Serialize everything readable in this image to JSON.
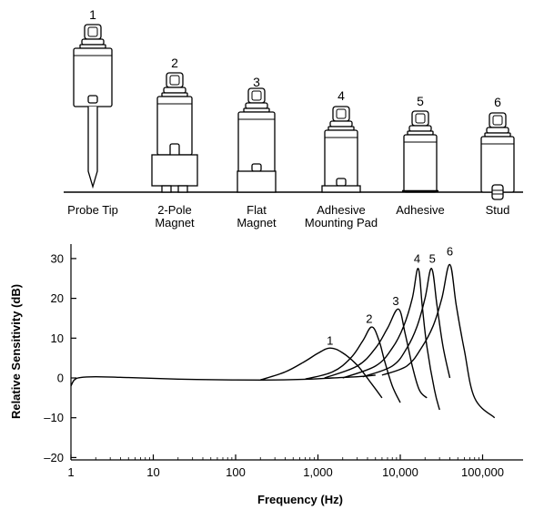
{
  "mounts": [
    {
      "number": "1",
      "label_lines": [
        "Probe Tip"
      ]
    },
    {
      "number": "2",
      "label_lines": [
        "2-Pole",
        "Magnet"
      ]
    },
    {
      "number": "3",
      "label_lines": [
        "Flat",
        "Magnet"
      ]
    },
    {
      "number": "4",
      "label_lines": [
        "Adhesive",
        "Mounting Pad"
      ]
    },
    {
      "number": "5",
      "label_lines": [
        "Adhesive"
      ]
    },
    {
      "number": "6",
      "label_lines": [
        "Stud"
      ]
    }
  ],
  "chart_data": {
    "type": "line",
    "title": "",
    "xlabel": "Frequency (Hz)",
    "ylabel": "Relative Sensitivity (dB)",
    "x_scale": "log",
    "xlim": [
      1,
      150000
    ],
    "ylim": [
      -20,
      33
    ],
    "x_ticks": [
      {
        "value": 1,
        "label": "1"
      },
      {
        "value": 10,
        "label": "10"
      },
      {
        "value": 100,
        "label": "100"
      },
      {
        "value": 1000,
        "label": "1,000"
      },
      {
        "value": 10000,
        "label": "10,000"
      },
      {
        "value": 100000,
        "label": "100,000"
      }
    ],
    "y_ticks": [
      {
        "value": 30,
        "label": "30"
      },
      {
        "value": 20,
        "label": "20"
      },
      {
        "value": 10,
        "label": "10"
      },
      {
        "value": 0,
        "label": "0"
      },
      {
        "value": -10,
        "label": "–10"
      },
      {
        "value": -20,
        "label": "–20"
      }
    ],
    "grid": false,
    "baseline": [
      [
        1,
        -2
      ],
      [
        1.1,
        -0.5
      ],
      [
        1.3,
        0.1
      ],
      [
        2,
        0.3
      ],
      [
        5,
        0.1
      ],
      [
        20,
        -0.3
      ],
      [
        100,
        -0.5
      ],
      [
        300,
        -0.5
      ],
      [
        800,
        -0.3
      ],
      [
        1500,
        0
      ],
      [
        3000,
        0.3
      ],
      [
        5000,
        0.7
      ]
    ],
    "series": [
      {
        "name": "1",
        "label_at": [
          1400,
          8.3
        ],
        "points": [
          [
            200,
            -0.5
          ],
          [
            400,
            1.5
          ],
          [
            700,
            4.2
          ],
          [
            1000,
            6.2
          ],
          [
            1400,
            7.5
          ],
          [
            2000,
            6.3
          ],
          [
            3000,
            3.2
          ],
          [
            4500,
            -1.5
          ],
          [
            6000,
            -5
          ]
        ]
      },
      {
        "name": "2",
        "label_at": [
          4200,
          13.8
        ],
        "points": [
          [
            700,
            -0.3
          ],
          [
            1500,
            1.5
          ],
          [
            2500,
            5
          ],
          [
            3500,
            9.3
          ],
          [
            4500,
            12.8
          ],
          [
            5500,
            9.5
          ],
          [
            6500,
            4
          ],
          [
            8000,
            -2
          ],
          [
            10000,
            -6.2
          ]
        ]
      },
      {
        "name": "3",
        "label_at": [
          8800,
          18.3
        ],
        "points": [
          [
            1200,
            0
          ],
          [
            3000,
            3
          ],
          [
            5000,
            7.5
          ],
          [
            7000,
            12.5
          ],
          [
            9500,
            17.3
          ],
          [
            11500,
            11
          ],
          [
            14000,
            3
          ],
          [
            17000,
            -3
          ],
          [
            21000,
            -5
          ]
        ]
      },
      {
        "name": "4",
        "label_at": [
          16000,
          29
        ],
        "points": [
          [
            2000,
            0
          ],
          [
            5000,
            3
          ],
          [
            8000,
            7.5
          ],
          [
            11000,
            13
          ],
          [
            14000,
            20
          ],
          [
            16500,
            27.5
          ],
          [
            18500,
            18
          ],
          [
            21000,
            8
          ],
          [
            26000,
            -3
          ],
          [
            30000,
            -8
          ]
        ]
      },
      {
        "name": "5",
        "label_at": [
          24500,
          29
        ],
        "points": [
          [
            3500,
            0.3
          ],
          [
            8000,
            3
          ],
          [
            12000,
            7.5
          ],
          [
            16000,
            13
          ],
          [
            20000,
            20
          ],
          [
            24000,
            27.5
          ],
          [
            28000,
            18
          ],
          [
            33000,
            8
          ],
          [
            40000,
            0
          ]
        ]
      },
      {
        "name": "6",
        "label_at": [
          40000,
          30.8
        ],
        "points": [
          [
            6000,
            0.7
          ],
          [
            12000,
            3
          ],
          [
            18000,
            7.5
          ],
          [
            25000,
            13
          ],
          [
            32000,
            20
          ],
          [
            40000,
            28.5
          ],
          [
            48000,
            18
          ],
          [
            60000,
            7
          ],
          [
            80000,
            -5
          ],
          [
            140000,
            -10
          ]
        ]
      }
    ]
  }
}
